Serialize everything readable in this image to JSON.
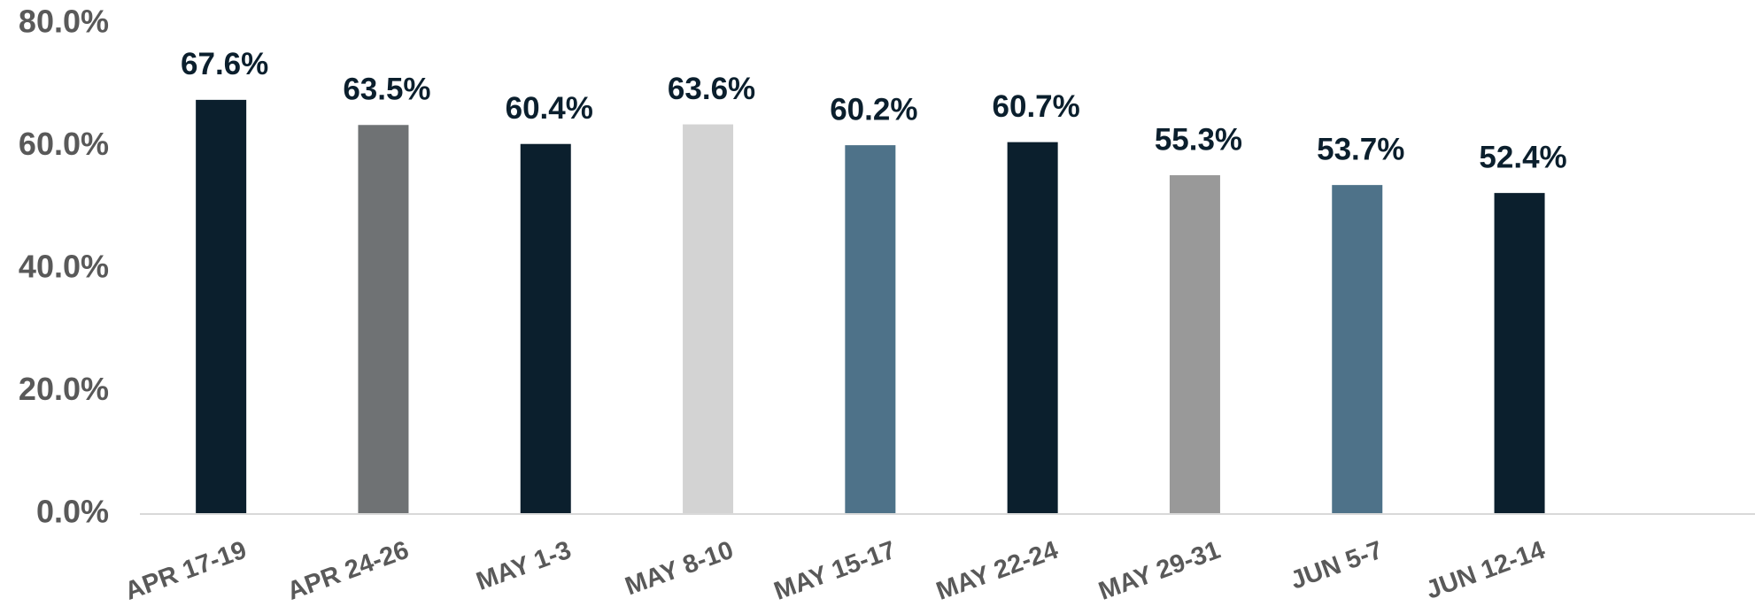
{
  "chart_data": {
    "type": "bar",
    "categories": [
      "APR 17-19",
      "APR 24-26",
      "MAY 1-3",
      "MAY 8-10",
      "MAY 15-17",
      "MAY 22-24",
      "MAY 29-31",
      "JUN 5-7",
      "JUN 12-14"
    ],
    "values": [
      67.6,
      63.5,
      60.4,
      63.6,
      60.2,
      60.7,
      55.3,
      53.7,
      52.4
    ],
    "value_labels": [
      "67.6%",
      "63.5%",
      "60.4%",
      "63.6%",
      "60.2%",
      "60.7%",
      "55.3%",
      "53.7%",
      "52.4%"
    ],
    "colors": [
      "#0b1f2d",
      "#6f7274",
      "#0b1f2d",
      "#d3d3d3",
      "#4e7289",
      "#0b1f2d",
      "#999999",
      "#4e7289",
      "#0b1f2d"
    ],
    "ylim": [
      0,
      80
    ],
    "yticks": [
      {
        "value": 0,
        "label": "0.0%"
      },
      {
        "value": 20,
        "label": "20.0%"
      },
      {
        "value": 40,
        "label": "40.0%"
      },
      {
        "value": 60,
        "label": "60.0%"
      },
      {
        "value": 80,
        "label": "80.0%"
      }
    ],
    "grid": false
  }
}
